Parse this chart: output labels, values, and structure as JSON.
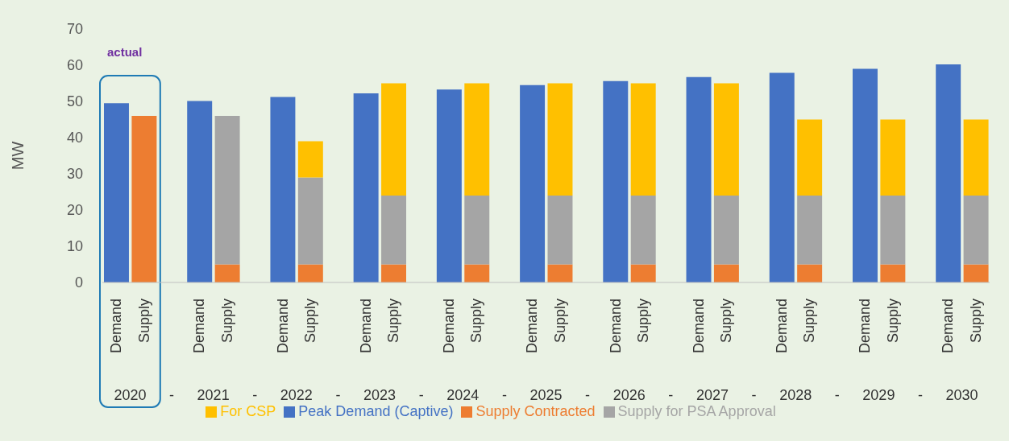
{
  "chart_data": {
    "type": "bar",
    "stacked": true,
    "ylabel": "MW",
    "ylim": [
      0,
      70
    ],
    "yticks": [
      0,
      10,
      20,
      30,
      40,
      50,
      60,
      70
    ],
    "legend": "bottom",
    "categories": [
      "Demand",
      "Supply",
      null,
      "Demand",
      "Supply",
      null,
      "Demand",
      "Supply",
      null,
      "Demand",
      "Supply",
      null,
      "Demand",
      "Supply",
      null,
      "Demand",
      "Supply",
      null,
      "Demand",
      "Supply",
      null,
      "Demand",
      "Supply",
      null,
      "Demand",
      "Supply",
      null,
      "Demand",
      "Supply",
      null,
      "Demand",
      "Supply"
    ],
    "series": [
      {
        "name": "Peak Demand (Captive)",
        "color": "#4472c4",
        "values": [
          49.5,
          null,
          null,
          50.1,
          null,
          null,
          51.2,
          null,
          null,
          52.2,
          null,
          null,
          53.3,
          null,
          null,
          54.5,
          null,
          null,
          55.6,
          null,
          null,
          56.7,
          null,
          null,
          57.9,
          null,
          null,
          59.0,
          null,
          null,
          60.2,
          null
        ]
      },
      {
        "name": "Supply Contracted",
        "color": "#ed7d31",
        "values": [
          null,
          46,
          null,
          null,
          5,
          null,
          null,
          5,
          null,
          null,
          5,
          null,
          null,
          5,
          null,
          null,
          5,
          null,
          null,
          5,
          null,
          null,
          5,
          null,
          null,
          5,
          null,
          null,
          5,
          null,
          null,
          5
        ]
      },
      {
        "name": "Supply for PSA Approval",
        "color": "#a5a5a5",
        "values": [
          null,
          null,
          null,
          null,
          41,
          null,
          null,
          24,
          null,
          null,
          19,
          null,
          null,
          19,
          null,
          null,
          19,
          null,
          null,
          19,
          null,
          null,
          19,
          null,
          null,
          19,
          null,
          null,
          19,
          null,
          null,
          19
        ]
      },
      {
        "name": "For CSP",
        "color": "#ffc000",
        "values": [
          null,
          null,
          null,
          null,
          null,
          null,
          null,
          10,
          null,
          null,
          31,
          null,
          null,
          31,
          null,
          null,
          31,
          null,
          null,
          31,
          null,
          null,
          31,
          null,
          null,
          21,
          null,
          null,
          21,
          null,
          null,
          21
        ]
      }
    ],
    "annotations": [
      "actual",
      "2020",
      "-",
      "2021",
      "-",
      "2022",
      "-",
      "2023",
      "-",
      "2024",
      "-",
      "2025",
      "-",
      "2026",
      "-",
      "2027",
      "-",
      "2028",
      "-",
      "2029",
      "-",
      "2030"
    ]
  }
}
